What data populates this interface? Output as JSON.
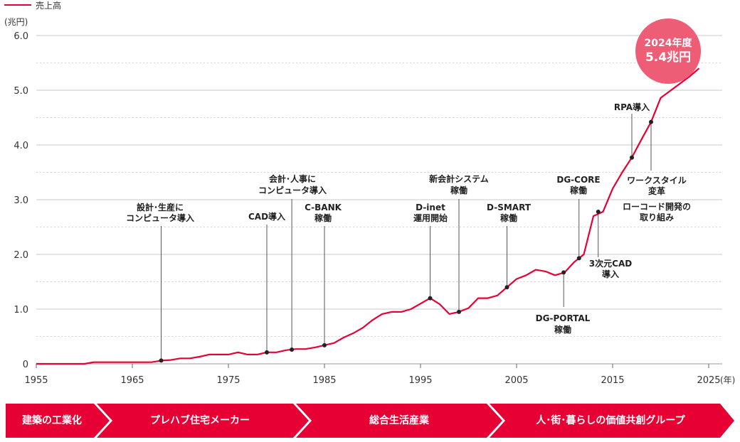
{
  "legend": {
    "label": "売上高"
  },
  "units": {
    "y": "(兆円)",
    "x": "(年)"
  },
  "badge": {
    "year": "2024年度",
    "value": "5.4兆円"
  },
  "colors": {
    "line": "#e60033",
    "badge": "#ee5d76",
    "era": "#e60033"
  },
  "eras": [
    {
      "label": "建築の工業化"
    },
    {
      "label": "プレハブ住宅メーカー"
    },
    {
      "label": "総合生活産業"
    },
    {
      "label": "人･街･暮らしの価値共創グループ"
    }
  ],
  "chart_data": {
    "type": "line",
    "title": "",
    "legend": [
      "売上高"
    ],
    "xlabel": "",
    "ylabel": "",
    "xlim": [
      1955,
      2025
    ],
    "ylim": [
      0,
      6.0
    ],
    "x_ticks": [
      "1955",
      "1965",
      "1975",
      "1985",
      "1995",
      "2005",
      "2015",
      "2025"
    ],
    "y_ticks": [
      "0",
      "1.0",
      "2.0",
      "3.0",
      "4.0",
      "5.0",
      "6.0"
    ],
    "grid": true,
    "series": [
      {
        "name": "売上高",
        "x": [
          1955,
          1960,
          1961,
          1962,
          1964,
          1966,
          1967,
          1968,
          1969,
          1970,
          1971,
          1972,
          1973,
          1974,
          1975,
          1976,
          1977,
          1978,
          1979,
          1980,
          1981,
          1982,
          1983,
          1984,
          1985,
          1986,
          1987,
          1988,
          1989,
          1990,
          1991,
          1992,
          1993,
          1994,
          1995,
          1996,
          1997,
          1998,
          1999,
          2000,
          2001,
          2002,
          2003,
          2004,
          2005,
          2006,
          2007,
          2008,
          2009,
          2010,
          2011,
          2012,
          2013,
          2014,
          2015,
          2016,
          2017,
          2018,
          2019,
          2020,
          2021,
          2022,
          2023,
          2024
        ],
        "values": [
          0,
          0,
          0.03,
          0.03,
          0.03,
          0.03,
          0.03,
          0.06,
          0.07,
          0.1,
          0.1,
          0.13,
          0.17,
          0.17,
          0.17,
          0.21,
          0.17,
          0.17,
          0.21,
          0.21,
          0.25,
          0.27,
          0.27,
          0.3,
          0.34,
          0.38,
          0.48,
          0.56,
          0.66,
          0.8,
          0.91,
          0.95,
          0.95,
          1.0,
          1.1,
          1.2,
          1.09,
          0.91,
          0.95,
          1.02,
          1.2,
          1.2,
          1.25,
          1.4,
          1.55,
          1.62,
          1.72,
          1.69,
          1.62,
          1.67,
          1.86,
          2.0,
          2.7,
          2.78,
          3.2,
          3.5,
          3.77,
          4.1,
          4.42,
          4.86,
          4.99,
          5.12,
          5.25,
          5.4
        ]
      }
    ],
    "annotations": [
      {
        "x": 1968,
        "y": 0.06,
        "label": "設計･生産に\nコンピュータ導入",
        "pos": "above"
      },
      {
        "x": 1979,
        "y": 0.21,
        "label": "CAD導入",
        "pos": "above"
      },
      {
        "x": 1981.6,
        "y": 0.26,
        "label": "会計･人事に\nコンピュータ導入",
        "pos": "above"
      },
      {
        "x": 1985,
        "y": 0.34,
        "label": "C-BANK\n稼働",
        "pos": "above"
      },
      {
        "x": 1996,
        "y": 1.2,
        "label": "D-inet\n運用開始",
        "pos": "above"
      },
      {
        "x": 1999,
        "y": 0.95,
        "label": "新会計システム\n稼働",
        "pos": "above"
      },
      {
        "x": 2004,
        "y": 1.4,
        "label": "D-SMART\n稼働",
        "pos": "above"
      },
      {
        "x": 2009.9,
        "y": 1.67,
        "label": "DG-PORTAL\n稼働",
        "pos": "below"
      },
      {
        "x": 2011.5,
        "y": 1.93,
        "label": "DG-CORE\n稼働",
        "pos": "above"
      },
      {
        "x": 2013.5,
        "y": 2.78,
        "label": "3次元CAD\n導入",
        "pos": "below"
      },
      {
        "x": 2017,
        "y": 3.77,
        "label": "RPA導入",
        "pos": "above"
      },
      {
        "x": 2019,
        "y": 4.42,
        "label": "ワークスタイル\n変革\nローコード開発の\n取り組み",
        "pos": "below"
      }
    ]
  }
}
